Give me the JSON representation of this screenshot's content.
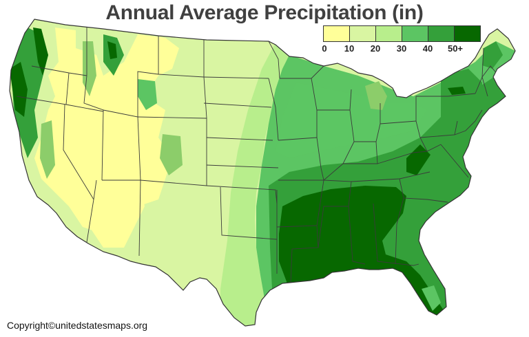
{
  "title": "Annual Average Precipitation (in)",
  "legend": {
    "colors": [
      "#ffff99",
      "#d9f5a2",
      "#b8ee8c",
      "#8ccd6a",
      "#5cc563",
      "#34a03a",
      "#076800"
    ],
    "labels": [
      "0",
      "10",
      "20",
      "30",
      "40",
      "50+"
    ]
  },
  "copyright": "Copyright©unitedstatesmaps.org"
}
